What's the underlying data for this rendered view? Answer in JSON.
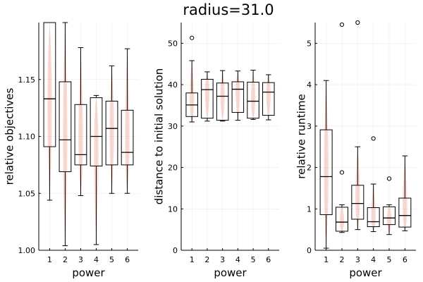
{
  "title": "radius=31.0",
  "chart_data": [
    {
      "type": "box",
      "xlabel": "power",
      "ylabel": "relative objectives",
      "categories": [
        "1",
        "2",
        "3",
        "4",
        "5",
        "6"
      ],
      "ylim": [
        1.0,
        1.2
      ],
      "yticks": [
        "1.00",
        "1.05",
        "1.10",
        "1.15"
      ],
      "ytick_values": [
        1.0,
        1.05,
        1.1,
        1.15
      ],
      "grid": true,
      "boxes": [
        {
          "min": 1.044,
          "q1": 1.091,
          "median": 1.133,
          "q3": 1.2,
          "max": 1.2,
          "outliers": []
        },
        {
          "min": 1.004,
          "q1": 1.069,
          "median": 1.097,
          "q3": 1.148,
          "max": 1.2,
          "outliers": []
        },
        {
          "min": 1.048,
          "q1": 1.075,
          "median": 1.084,
          "q3": 1.128,
          "max": 1.178,
          "outliers": []
        },
        {
          "min": 1.005,
          "q1": 1.074,
          "median": 1.1,
          "q3": 1.134,
          "max": 1.136,
          "outliers": []
        },
        {
          "min": 1.05,
          "q1": 1.075,
          "median": 1.107,
          "q3": 1.131,
          "max": 1.162,
          "outliers": []
        },
        {
          "min": 1.05,
          "q1": 1.075,
          "median": 1.086,
          "q3": 1.123,
          "max": 1.177,
          "outliers": []
        }
      ]
    },
    {
      "type": "box",
      "xlabel": "power",
      "ylabel": "distance to initial solution",
      "categories": [
        "1",
        "2",
        "3",
        "4",
        "5",
        "6"
      ],
      "ylim": [
        0,
        55
      ],
      "yticks": [
        "0",
        "10",
        "20",
        "30",
        "40",
        "50"
      ],
      "ytick_values": [
        0,
        10,
        20,
        30,
        40,
        50
      ],
      "grid": true,
      "boxes": [
        {
          "min": 31.0,
          "q1": 32.3,
          "median": 35.1,
          "q3": 38.0,
          "max": 45.8,
          "outliers": [
            51.3
          ]
        },
        {
          "min": 31.2,
          "q1": 31.9,
          "median": 38.8,
          "q3": 41.3,
          "max": 43.1,
          "outliers": []
        },
        {
          "min": 31.2,
          "q1": 31.4,
          "median": 37.2,
          "q3": 40.4,
          "max": 43.4,
          "outliers": []
        },
        {
          "min": 31.4,
          "q1": 33.3,
          "median": 38.9,
          "q3": 40.7,
          "max": 43.3,
          "outliers": []
        },
        {
          "min": 31.6,
          "q1": 31.9,
          "median": 36.0,
          "q3": 40.6,
          "max": 43.5,
          "outliers": []
        },
        {
          "min": 31.5,
          "q1": 32.6,
          "median": 38.2,
          "q3": 40.5,
          "max": 42.4,
          "outliers": []
        }
      ]
    },
    {
      "type": "box",
      "xlabel": "power",
      "ylabel": "relative runtime",
      "categories": [
        "1",
        "2",
        "3",
        "4",
        "5",
        "6"
      ],
      "ylim": [
        0,
        5.5
      ],
      "yticks": [
        "0",
        "1",
        "2",
        "3",
        "4",
        "5"
      ],
      "ytick_values": [
        0,
        1,
        2,
        3,
        4,
        5
      ],
      "grid": true,
      "boxes": [
        {
          "min": 0.05,
          "q1": 0.86,
          "median": 1.78,
          "q3": 2.91,
          "max": 4.1,
          "outliers": []
        },
        {
          "min": 0.43,
          "q1": 0.46,
          "median": 0.68,
          "q3": 1.04,
          "max": 1.1,
          "outliers": [
            1.88,
            5.45
          ]
        },
        {
          "min": 0.5,
          "q1": 0.75,
          "median": 1.13,
          "q3": 1.57,
          "max": 2.5,
          "outliers": [
            5.5
          ]
        },
        {
          "min": 0.45,
          "q1": 0.57,
          "median": 0.69,
          "q3": 1.03,
          "max": 1.6,
          "outliers": [
            2.7
          ]
        },
        {
          "min": 0.38,
          "q1": 0.62,
          "median": 0.78,
          "q3": 1.05,
          "max": 1.1,
          "outliers": [
            1.73
          ]
        },
        {
          "min": 0.47,
          "q1": 0.56,
          "median": 0.84,
          "q3": 1.26,
          "max": 2.28,
          "outliers": []
        }
      ]
    }
  ]
}
